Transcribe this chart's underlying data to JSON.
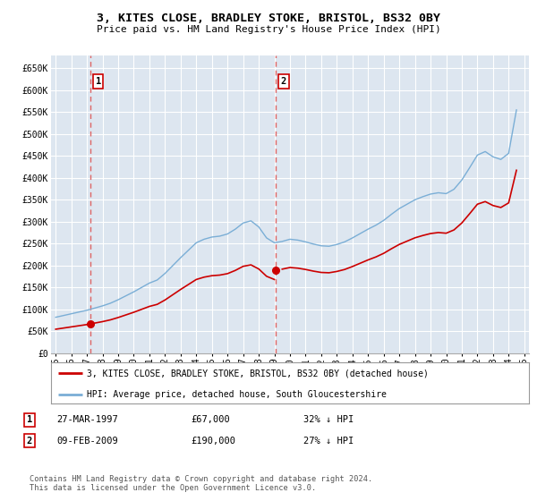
{
  "title": "3, KITES CLOSE, BRADLEY STOKE, BRISTOL, BS32 0BY",
  "subtitle": "Price paid vs. HM Land Registry's House Price Index (HPI)",
  "background_color": "#dde6f0",
  "ylabel_ticks": [
    "£0",
    "£50K",
    "£100K",
    "£150K",
    "£200K",
    "£250K",
    "£300K",
    "£350K",
    "£400K",
    "£450K",
    "£500K",
    "£550K",
    "£600K",
    "£650K"
  ],
  "ytick_values": [
    0,
    50000,
    100000,
    150000,
    200000,
    250000,
    300000,
    350000,
    400000,
    450000,
    500000,
    550000,
    600000,
    650000
  ],
  "ylim": [
    0,
    680000
  ],
  "hpi_color": "#7aaed6",
  "price_color": "#cc0000",
  "dashed_color": "#dd6666",
  "sale1_date": 1997.24,
  "sale1_price": 67000,
  "sale2_date": 2009.11,
  "sale2_price": 190000,
  "legend_label1": "3, KITES CLOSE, BRADLEY STOKE, BRISTOL, BS32 0BY (detached house)",
  "legend_label2": "HPI: Average price, detached house, South Gloucestershire",
  "note1_date": "27-MAR-1997",
  "note1_price": "£67,000",
  "note1_hpi": "32% ↓ HPI",
  "note2_date": "09-FEB-2009",
  "note2_price": "£190,000",
  "note2_hpi": "27% ↓ HPI",
  "footer": "Contains HM Land Registry data © Crown copyright and database right 2024.\nThis data is licensed under the Open Government Licence v3.0.",
  "xlim_start": 1994.7,
  "xlim_end": 2025.3,
  "xtick_years": [
    1995,
    1996,
    1997,
    1998,
    1999,
    2000,
    2001,
    2002,
    2003,
    2004,
    2005,
    2006,
    2007,
    2008,
    2009,
    2010,
    2011,
    2012,
    2013,
    2014,
    2015,
    2016,
    2017,
    2018,
    2019,
    2020,
    2021,
    2022,
    2023,
    2024,
    2025
  ],
  "hpi_years": [
    1995,
    1995.5,
    1996,
    1996.5,
    1997,
    1997.5,
    1998,
    1998.5,
    1999,
    1999.5,
    2000,
    2000.5,
    2001,
    2001.5,
    2002,
    2002.5,
    2003,
    2003.5,
    2004,
    2004.5,
    2005,
    2005.5,
    2006,
    2006.5,
    2007,
    2007.5,
    2008,
    2008.5,
    2009,
    2009.5,
    2010,
    2010.5,
    2011,
    2011.5,
    2012,
    2012.5,
    2013,
    2013.5,
    2014,
    2014.5,
    2015,
    2015.5,
    2016,
    2016.5,
    2017,
    2017.5,
    2018,
    2018.5,
    2019,
    2019.5,
    2020,
    2020.5,
    2021,
    2021.5,
    2022,
    2022.5,
    2023,
    2023.5,
    2024,
    2024.5
  ],
  "hpi_values": [
    82000,
    86000,
    90000,
    94000,
    98000,
    103000,
    108000,
    114000,
    122000,
    131000,
    140000,
    150000,
    160000,
    167000,
    182000,
    200000,
    218000,
    235000,
    252000,
    260000,
    265000,
    267000,
    272000,
    283000,
    297000,
    302000,
    288000,
    263000,
    252000,
    255000,
    260000,
    258000,
    254000,
    249000,
    245000,
    244000,
    248000,
    254000,
    263000,
    273000,
    283000,
    292000,
    303000,
    317000,
    330000,
    340000,
    350000,
    357000,
    363000,
    366000,
    364000,
    374000,
    395000,
    423000,
    452000,
    460000,
    448000,
    442000,
    456000,
    555000
  ]
}
